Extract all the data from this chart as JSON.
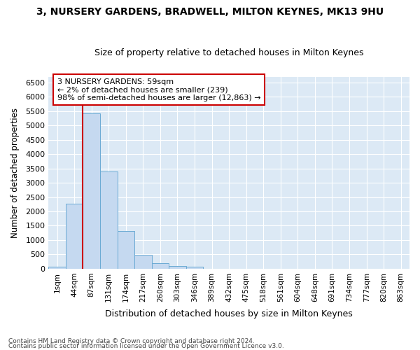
{
  "title": "3, NURSERY GARDENS, BRADWELL, MILTON KEYNES, MK13 9HU",
  "subtitle": "Size of property relative to detached houses in Milton Keynes",
  "xlabel": "Distribution of detached houses by size in Milton Keynes",
  "ylabel": "Number of detached properties",
  "bar_color": "#c5d9f0",
  "bar_edge_color": "#6aaad4",
  "categories": [
    "1sqm",
    "44sqm",
    "87sqm",
    "131sqm",
    "174sqm",
    "217sqm",
    "260sqm",
    "303sqm",
    "346sqm",
    "389sqm",
    "432sqm",
    "475sqm",
    "518sqm",
    "561sqm",
    "604sqm",
    "648sqm",
    "691sqm",
    "734sqm",
    "777sqm",
    "820sqm",
    "863sqm"
  ],
  "values": [
    75,
    2280,
    5430,
    3390,
    1310,
    490,
    195,
    100,
    60,
    0,
    0,
    0,
    0,
    0,
    0,
    0,
    0,
    0,
    0,
    0,
    0
  ],
  "ylim": [
    0,
    6700
  ],
  "yticks": [
    0,
    500,
    1000,
    1500,
    2000,
    2500,
    3000,
    3500,
    4000,
    4500,
    5000,
    5500,
    6000,
    6500
  ],
  "annotation_text": "3 NURSERY GARDENS: 59sqm\n← 2% of detached houses are smaller (239)\n98% of semi-detached houses are larger (12,863) →",
  "annotation_box_color": "#ffffff",
  "annotation_box_edge": "#cc0000",
  "footer_line1": "Contains HM Land Registry data © Crown copyright and database right 2024.",
  "footer_line2": "Contains public sector information licensed under the Open Government Licence v3.0.",
  "fig_background_color": "#ffffff",
  "plot_background_color": "#dce9f5",
  "grid_color": "#ffffff",
  "red_line_color": "#cc0000",
  "figsize": [
    6.0,
    5.0
  ],
  "dpi": 100
}
